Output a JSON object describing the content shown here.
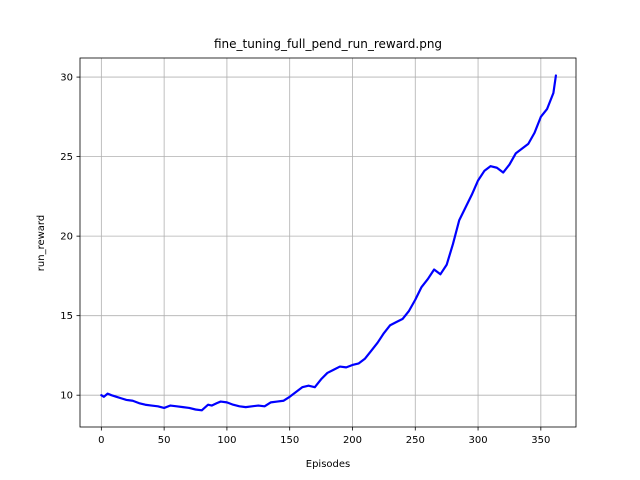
{
  "chart_data": {
    "type": "line",
    "title": "fine_tuning_full_pend_run_reward.png",
    "xlabel": "Episodes",
    "ylabel": "run_reward",
    "xlim": [
      -17,
      378
    ],
    "ylim": [
      8.0,
      31.2
    ],
    "xticks": [
      0,
      50,
      100,
      150,
      200,
      250,
      300,
      350
    ],
    "yticks": [
      10,
      15,
      20,
      25,
      30
    ],
    "grid": true,
    "legend": "none",
    "colors": {
      "line": "#0000ff",
      "grid": "#b0b0b0",
      "axes": "#000000"
    },
    "series": [
      {
        "color": "#0000ff",
        "x": [
          0,
          2,
          5,
          8,
          12,
          16,
          20,
          25,
          30,
          35,
          40,
          45,
          50,
          55,
          60,
          65,
          70,
          75,
          80,
          85,
          88,
          92,
          95,
          100,
          105,
          110,
          115,
          120,
          125,
          130,
          135,
          140,
          145,
          150,
          155,
          160,
          165,
          170,
          175,
          180,
          185,
          190,
          195,
          200,
          205,
          210,
          215,
          220,
          225,
          230,
          235,
          240,
          245,
          250,
          255,
          260,
          265,
          270,
          275,
          280,
          285,
          290,
          295,
          300,
          305,
          310,
          315,
          320,
          325,
          330,
          335,
          340,
          345,
          350,
          355,
          360,
          362
        ],
        "y": [
          10.0,
          9.9,
          10.1,
          10.0,
          9.9,
          9.8,
          9.7,
          9.65,
          9.5,
          9.4,
          9.35,
          9.3,
          9.2,
          9.35,
          9.3,
          9.25,
          9.2,
          9.1,
          9.05,
          9.4,
          9.35,
          9.5,
          9.6,
          9.55,
          9.4,
          9.3,
          9.25,
          9.3,
          9.35,
          9.3,
          9.55,
          9.6,
          9.65,
          9.9,
          10.2,
          10.5,
          10.6,
          10.5,
          11.0,
          11.4,
          11.6,
          11.8,
          11.75,
          11.9,
          12.0,
          12.3,
          12.8,
          13.3,
          13.9,
          14.4,
          14.6,
          14.8,
          15.3,
          16.0,
          16.8,
          17.3,
          17.9,
          17.6,
          18.2,
          19.5,
          21.0,
          21.8,
          22.6,
          23.5,
          24.1,
          24.4,
          24.3,
          24.0,
          24.5,
          25.2,
          25.5,
          25.8,
          26.5,
          27.5,
          28.0,
          29.0,
          30.1
        ]
      }
    ]
  }
}
